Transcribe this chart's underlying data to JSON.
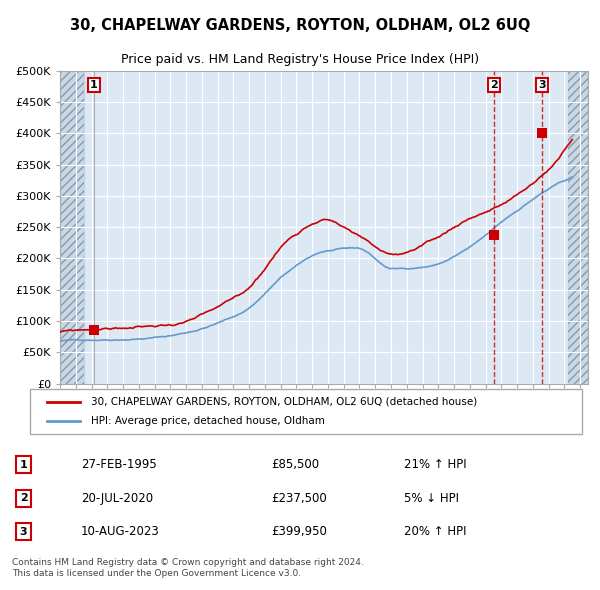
{
  "title1": "30, CHAPELWAY GARDENS, ROYTON, OLDHAM, OL2 6UQ",
  "title2": "Price paid vs. HM Land Registry's House Price Index (HPI)",
  "xlabel": "",
  "ylabel": "",
  "ylim": [
    0,
    500000
  ],
  "yticks": [
    0,
    50000,
    100000,
    150000,
    200000,
    250000,
    300000,
    350000,
    400000,
    450000,
    500000
  ],
  "ytick_labels": [
    "£0",
    "£50K",
    "£100K",
    "£150K",
    "£200K",
    "£250K",
    "£300K",
    "£350K",
    "£400K",
    "£450K",
    "£500K"
  ],
  "xlim_start": 1993.0,
  "xlim_end": 2026.5,
  "xtick_years": [
    1993,
    1994,
    1995,
    1996,
    1997,
    1998,
    1999,
    2000,
    2001,
    2002,
    2003,
    2004,
    2005,
    2006,
    2007,
    2008,
    2009,
    2010,
    2011,
    2012,
    2013,
    2014,
    2015,
    2016,
    2017,
    2018,
    2019,
    2020,
    2021,
    2022,
    2023,
    2024,
    2025,
    2026
  ],
  "hpi_color": "#6699cc",
  "price_color": "#cc0000",
  "bg_color": "#dce9f5",
  "grid_color": "#ffffff",
  "hatch_color": "#c0c8d8",
  "legend_label_price": "30, CHAPELWAY GARDENS, ROYTON, OLDHAM, OL2 6UQ (detached house)",
  "legend_label_hpi": "HPI: Average price, detached house, Oldham",
  "sale1_date": 1995.15,
  "sale1_price": 85500,
  "sale1_label": "1",
  "sale2_date": 2020.55,
  "sale2_price": 237500,
  "sale2_label": "2",
  "sale3_date": 2023.61,
  "sale3_price": 399950,
  "sale3_label": "3",
  "table_data": [
    [
      "1",
      "27-FEB-1995",
      "£85,500",
      "21% ↑ HPI"
    ],
    [
      "2",
      "20-JUL-2020",
      "£237,500",
      "5% ↓ HPI"
    ],
    [
      "3",
      "10-AUG-2023",
      "£399,950",
      "20% ↑ HPI"
    ]
  ],
  "footer": "Contains HM Land Registry data © Crown copyright and database right 2024.\nThis data is licensed under the Open Government Licence v3.0."
}
